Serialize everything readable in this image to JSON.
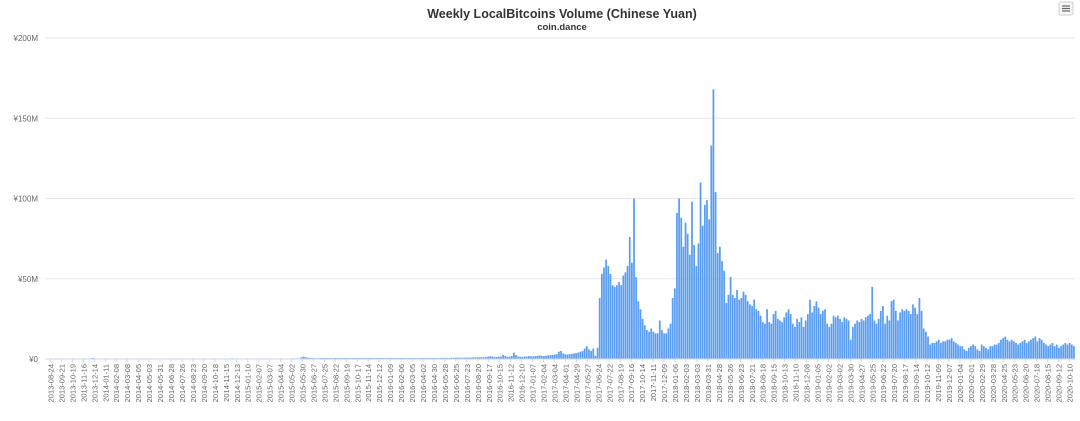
{
  "chart_data": {
    "type": "bar",
    "title": "Weekly LocalBitcoins Volume (Chinese Yuan)",
    "subtitle": "coin.dance",
    "xlabel": "",
    "ylabel": "",
    "ylim": [
      0,
      200000000
    ],
    "y_ticks": [
      {
        "value": 0,
        "label": "¥0"
      },
      {
        "value": 50000000,
        "label": "¥50M"
      },
      {
        "value": 100000000,
        "label": "¥100M"
      },
      {
        "value": 150000000,
        "label": "¥150M"
      },
      {
        "value": 200000000,
        "label": "¥200M"
      }
    ],
    "x_tick_labels": [
      "2013-08-24",
      "2013-09-21",
      "2013-10-19",
      "2013-11-16",
      "2013-12-14",
      "2014-01-11",
      "2014-02-08",
      "2014-03-08",
      "2014-04-05",
      "2014-05-03",
      "2014-05-31",
      "2014-06-28",
      "2014-07-26",
      "2014-08-23",
      "2014-09-20",
      "2014-10-18",
      "2014-11-15",
      "2014-12-13",
      "2015-01-10",
      "2015-02-07",
      "2015-03-07",
      "2015-04-04",
      "2015-05-02",
      "2015-05-30",
      "2015-06-27",
      "2015-07-25",
      "2015-08-22",
      "2015-09-19",
      "2015-10-17",
      "2015-11-14",
      "2015-12-12",
      "2016-01-09",
      "2016-02-06",
      "2016-03-05",
      "2016-04-02",
      "2016-04-30",
      "2016-05-28",
      "2016-06-25",
      "2016-07-23",
      "2016-08-20",
      "2016-09-17",
      "2016-10-15",
      "2016-11-12",
      "2016-12-10",
      "2017-01-07",
      "2017-02-04",
      "2017-03-04",
      "2017-04-01",
      "2017-04-29",
      "2017-05-27",
      "2017-06-24",
      "2017-07-22",
      "2017-08-19",
      "2017-09-16",
      "2017-10-14",
      "2017-11-11",
      "2017-12-09",
      "2018-01-06",
      "2018-02-03",
      "2018-03-03",
      "2018-03-31",
      "2018-04-28",
      "2018-05-26",
      "2018-06-23",
      "2018-07-21",
      "2018-08-18",
      "2018-09-15",
      "2018-10-13",
      "2018-11-10",
      "2018-12-08",
      "2019-01-05",
      "2019-02-02",
      "2019-03-02",
      "2019-03-30",
      "2019-04-27",
      "2019-05-25",
      "2019-06-22",
      "2019-07-20",
      "2019-08-17",
      "2019-09-14",
      "2019-10-12",
      "2019-11-09",
      "2019-12-07",
      "2020-01-04",
      "2020-02-01",
      "2020-02-29",
      "2020-03-28",
      "2020-04-25",
      "2020-05-23",
      "2020-06-20",
      "2020-07-18",
      "2020-08-15",
      "2020-09-12",
      "2020-10-10"
    ],
    "series": [
      {
        "color": "#5b9ef0",
        "values": [
          0.1,
          0.1,
          0.1,
          0.1,
          0.1,
          0.1,
          0.1,
          0.1,
          0.1,
          0.1,
          0.1,
          0.1,
          0.1,
          0.1,
          0.1,
          0.2,
          0.3,
          0.2,
          0.2,
          0.2,
          0.3,
          0.5,
          0.6,
          0.3,
          0.2,
          0.2,
          0.2,
          0.2,
          0.2,
          0.1,
          0.1,
          0.1,
          0.1,
          0.1,
          0.1,
          0.1,
          0.1,
          0.1,
          0.1,
          0.1,
          0.1,
          0.1,
          0.1,
          0.1,
          0.1,
          0.1,
          0.1,
          0.1,
          0.1,
          0.1,
          0.1,
          0.1,
          0.1,
          0.1,
          0.1,
          0.1,
          0.1,
          0.2,
          0.2,
          0.2,
          0.2,
          0.2,
          0.2,
          0.2,
          0.2,
          0.2,
          0.2,
          0.2,
          0.3,
          0.3,
          0.3,
          0.3,
          0.3,
          0.3,
          0.3,
          0.3,
          0.3,
          0.3,
          0.3,
          0.3,
          0.3,
          0.3,
          0.3,
          0.3,
          0.3,
          0.3,
          0.4,
          0.4,
          0.3,
          0.3,
          0.3,
          0.3,
          0.3,
          0.3,
          0.3,
          0.3,
          0.3,
          0.3,
          0.3,
          0.3,
          0.3,
          0.3,
          0.3,
          0.3,
          0.3,
          0.3,
          0.3,
          0.3,
          0.3,
          0.3,
          0.3,
          0.3,
          0.3,
          0.3,
          0.3,
          0.4,
          0.4,
          0.4,
          0.4,
          1.0,
          1.5,
          1.2,
          0.8,
          0.6,
          0.6,
          0.5,
          0.5,
          0.5,
          0.6,
          0.6,
          0.6,
          0.6,
          0.6,
          0.6,
          0.6,
          0.6,
          0.6,
          0.6,
          0.6,
          0.6,
          0.6,
          0.6,
          0.6,
          0.6,
          0.6,
          0.6,
          0.6,
          0.6,
          0.6,
          0.6,
          0.6,
          0.6,
          0.6,
          0.6,
          0.6,
          0.6,
          0.6,
          0.6,
          0.6,
          0.6,
          0.6,
          0.6,
          0.6,
          0.6,
          0.6,
          0.6,
          0.6,
          0.6,
          0.6,
          0.6,
          0.6,
          0.6,
          0.6,
          0.6,
          0.6,
          0.6,
          0.6,
          0.6,
          0.6,
          0.6,
          0.6,
          0.6,
          0.6,
          0.6,
          0.7,
          0.7,
          0.7,
          0.7,
          0.7,
          0.8,
          0.8,
          0.8,
          0.8,
          0.8,
          0.8,
          0.9,
          0.9,
          0.9,
          0.9,
          1.0,
          1.0,
          1.0,
          1.1,
          1.1,
          1.0,
          1.2,
          1.5,
          1.7,
          1.5,
          1.3,
          1.3,
          1.4,
          1.5,
          2.5,
          2.0,
          1.4,
          1.5,
          1.8,
          4.0,
          2.5,
          1.6,
          1.4,
          1.3,
          1.5,
          1.6,
          1.8,
          1.7,
          1.6,
          1.8,
          2.0,
          2.2,
          2.0,
          1.8,
          2.0,
          2.3,
          2.4,
          2.5,
          2.7,
          3.0,
          4.5,
          5.0,
          3.5,
          3.0,
          2.8,
          3.0,
          3.2,
          3.5,
          3.7,
          4.0,
          4.5,
          5.0,
          6.5,
          8.0,
          6.0,
          5.0,
          6.5,
          2.0,
          7.0,
          38,
          53,
          57,
          62,
          58,
          53,
          46,
          45,
          46,
          48,
          46,
          52,
          54,
          58,
          76,
          60,
          100,
          51,
          36,
          31,
          25,
          21,
          18,
          17,
          19,
          17,
          16,
          16,
          24,
          18,
          16,
          16,
          19,
          22,
          38,
          44,
          91,
          100,
          88,
          70,
          85,
          78,
          65,
          98,
          71,
          58,
          72,
          110,
          83,
          96,
          99,
          87,
          133,
          168,
          104,
          66,
          70,
          61,
          55,
          35,
          40,
          51,
          40,
          38,
          43,
          37,
          38,
          42,
          40,
          36,
          34,
          33,
          37,
          31,
          30,
          27,
          23,
          22,
          31,
          23,
          22,
          28,
          30,
          25,
          24,
          23,
          26,
          29,
          31,
          28,
          22,
          20,
          25,
          23,
          26,
          20,
          24,
          28,
          37,
          29,
          33,
          36,
          32,
          28,
          30,
          31,
          22,
          20,
          22,
          27,
          26,
          27,
          25,
          23,
          26,
          25,
          24,
          12,
          20,
          22,
          24,
          23,
          25,
          24,
          26,
          27,
          28,
          45,
          24,
          22,
          25,
          30,
          33,
          22,
          27,
          24,
          36,
          37,
          30,
          24,
          29,
          31,
          30,
          31,
          30,
          28,
          34,
          32,
          28,
          38,
          30,
          19,
          17,
          14,
          9,
          10,
          10,
          11,
          12,
          10,
          11,
          11,
          12,
          12,
          13,
          11,
          10,
          9,
          8,
          8,
          6,
          5,
          7,
          8,
          9,
          8,
          6,
          5,
          9,
          8,
          7,
          6,
          8,
          8,
          9,
          9,
          10,
          12,
          13,
          14,
          12,
          11,
          12,
          11,
          10,
          9,
          10,
          11,
          12,
          10,
          11,
          12,
          13,
          14,
          11,
          13,
          12,
          10,
          9,
          8,
          9,
          10,
          8,
          9,
          7,
          8,
          9,
          10,
          9,
          10,
          9,
          8
        ]
      }
    ]
  },
  "ui": {
    "menu_icon": "hamburger-menu-icon"
  }
}
